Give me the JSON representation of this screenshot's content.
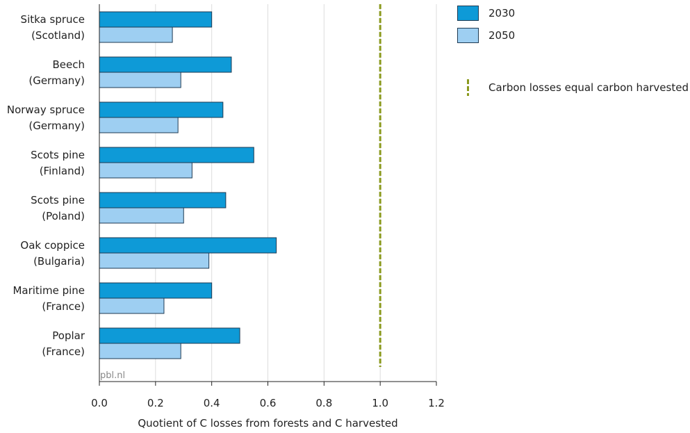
{
  "chart_data": {
    "type": "bar",
    "orientation": "horizontal",
    "categories": [
      [
        "Sitka spruce",
        "(Scotland)"
      ],
      [
        "Beech",
        "(Germany)"
      ],
      [
        "Norway spruce",
        "(Germany)"
      ],
      [
        "Scots pine",
        "(Finland)"
      ],
      [
        "Scots pine",
        "(Poland)"
      ],
      [
        "Oak coppice",
        "(Bulgaria)"
      ],
      [
        "Maritime pine",
        "(France)"
      ],
      [
        "Poplar",
        "(France)"
      ]
    ],
    "series": [
      {
        "name": "2030",
        "values": [
          0.4,
          0.47,
          0.44,
          0.55,
          0.45,
          0.63,
          0.4,
          0.5
        ],
        "color": "#0e9ad7"
      },
      {
        "name": "2050",
        "values": [
          0.26,
          0.29,
          0.28,
          0.33,
          0.3,
          0.39,
          0.23,
          0.29
        ],
        "color": "#9ecff2"
      }
    ],
    "reference_line": {
      "value": 1.0,
      "label": "Carbon losses equal carbon harvested",
      "color": "#8b9a1e",
      "style": "dashed"
    },
    "xlabel": "Quotient of C losses from forests and C harvested",
    "xlim": [
      0,
      1.2
    ],
    "xticks": [
      0.0,
      0.2,
      0.4,
      0.6,
      0.8,
      1.0,
      1.2
    ],
    "xtick_labels": [
      "0.0",
      "0.2",
      "0.4",
      "0.6",
      "0.8",
      "1.0",
      "1.2"
    ],
    "grid": true,
    "legend_position": "top-right",
    "source_label": "pbl.nl"
  }
}
